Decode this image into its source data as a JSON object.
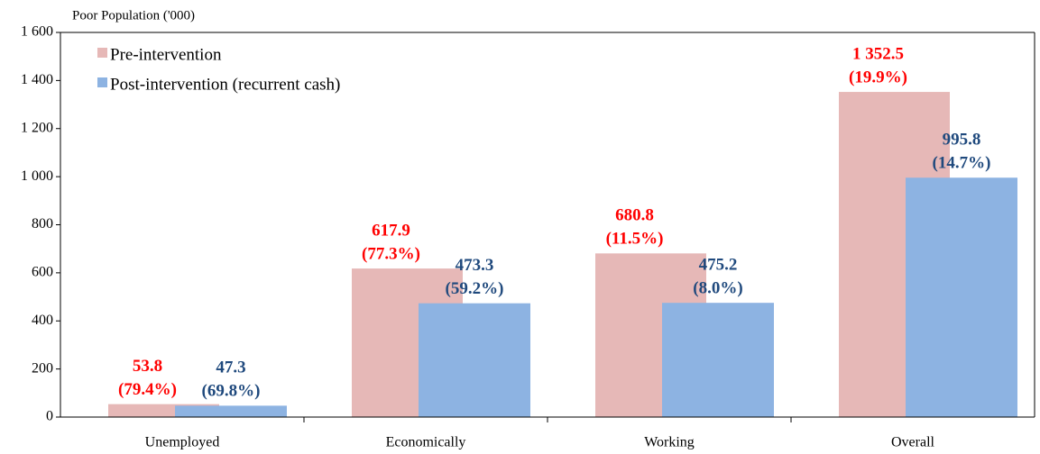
{
  "chart_data": {
    "type": "bar",
    "y_axis_label": "Poor Population ('000)",
    "categories": [
      "Unemployed",
      "Economically",
      "Working",
      "Overall"
    ],
    "series": [
      {
        "name": "Pre-intervention",
        "color": "#e6b8b7",
        "label_color": "#ff0000",
        "values": [
          53.8,
          617.9,
          680.8,
          1352.5
        ],
        "value_labels": [
          "53.8",
          "617.9",
          "680.8",
          "1 352.5"
        ],
        "shares": [
          79.4,
          77.3,
          11.5,
          19.9
        ],
        "share_labels": [
          "(79.4%)",
          "(77.3%)",
          "(11.5%)",
          "(19.9%)"
        ]
      },
      {
        "name": "Post-intervention (recurrent cash)",
        "color": "#8db3e2",
        "label_color": "#1f497d",
        "values": [
          47.3,
          473.3,
          475.2,
          995.8
        ],
        "value_labels": [
          "47.3",
          "473.3",
          "475.2",
          "995.8"
        ],
        "shares": [
          69.8,
          59.2,
          8.0,
          14.7
        ],
        "share_labels": [
          "(69.8%)",
          "(59.2%)",
          "(8.0%)",
          "(14.7%)"
        ]
      }
    ],
    "ylim": [
      0,
      1600
    ],
    "yticks": [
      0,
      200,
      400,
      600,
      800,
      {
        "value": 1000,
        "label": "1 000"
      },
      {
        "value": 1200,
        "label": "1 200"
      },
      {
        "value": 1400,
        "label": "1 400"
      },
      {
        "value": 1600,
        "label": "1 600"
      }
    ],
    "legend": "upper-left"
  }
}
